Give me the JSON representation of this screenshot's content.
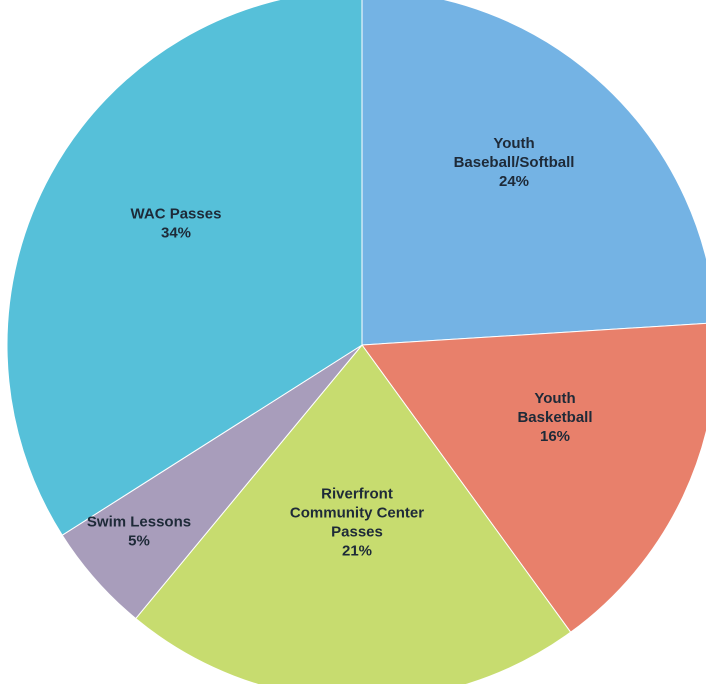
{
  "chart_data": {
    "type": "pie",
    "start_angle_deg": 0,
    "direction": "clockwise",
    "slices": [
      {
        "label_lines": [
          "Youth",
          "Baseball/Softball"
        ],
        "pct_text": "24%",
        "value": 24,
        "color": "#74b3e4"
      },
      {
        "label_lines": [
          "Youth",
          "Basketball"
        ],
        "pct_text": "16%",
        "value": 16,
        "color": "#e8806b"
      },
      {
        "label_lines": [
          "Riverfront",
          "Community Center",
          "Passes"
        ],
        "pct_text": "21%",
        "value": 21,
        "color": "#c7dc6f"
      },
      {
        "label_lines": [
          "Swim Lessons"
        ],
        "pct_text": "5%",
        "value": 5,
        "color": "#a89dbb"
      },
      {
        "label_lines": [
          "WAC Passes"
        ],
        "pct_text": "34%",
        "value": 34,
        "color": "#56c0d9"
      }
    ]
  }
}
